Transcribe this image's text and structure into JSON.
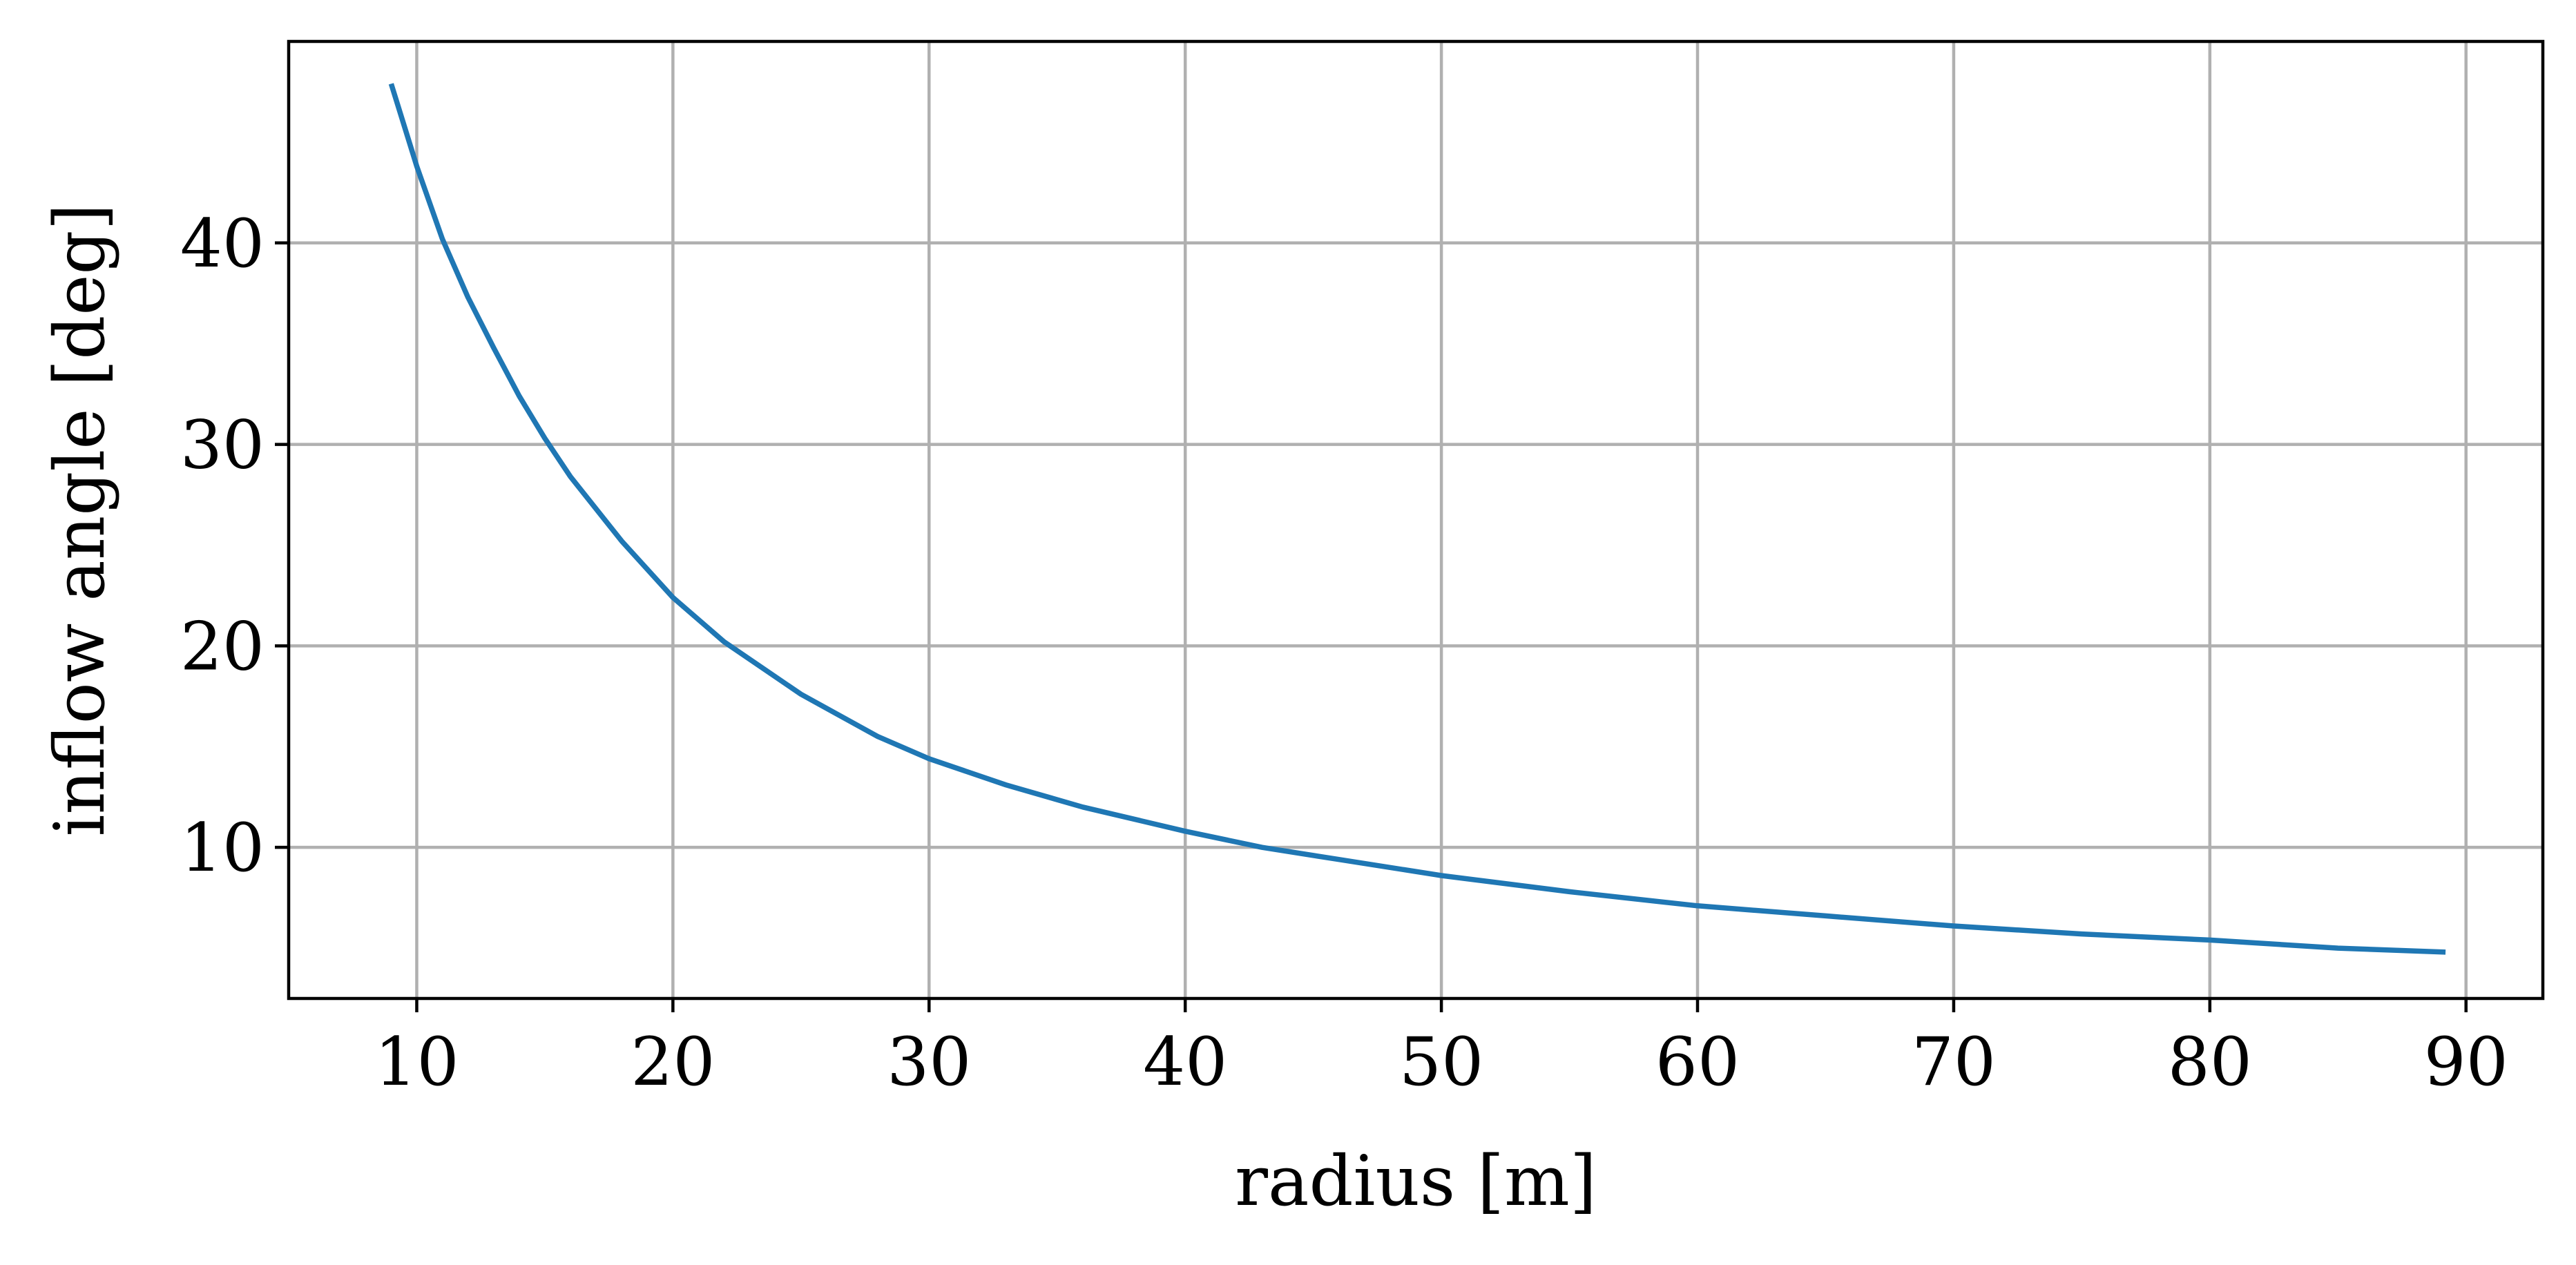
{
  "chart_data": {
    "type": "line",
    "title": "",
    "xlabel": "radius [m]",
    "ylabel": "inflow angle [deg]",
    "xlim": [
      5,
      93
    ],
    "ylim": [
      2.5,
      50
    ],
    "x_ticks": [
      10,
      20,
      30,
      40,
      50,
      60,
      70,
      80,
      90
    ],
    "y_ticks": [
      10,
      20,
      30,
      40
    ],
    "grid": true,
    "legend": "none",
    "series": [
      {
        "color": "#1f77b4",
        "x": [
          9,
          10,
          11,
          12,
          13,
          14,
          15,
          16,
          18,
          20,
          22,
          25,
          28,
          30,
          33,
          36,
          40,
          43,
          46,
          50,
          55,
          60,
          65,
          70,
          75,
          80,
          85,
          89.2
        ],
        "y": [
          47.9,
          43.8,
          40.2,
          37.3,
          34.8,
          32.4,
          30.3,
          28.4,
          25.2,
          22.4,
          20.2,
          17.6,
          15.5,
          14.4,
          13.1,
          12.0,
          10.8,
          10.0,
          9.4,
          8.6,
          7.8,
          7.1,
          6.6,
          6.1,
          5.7,
          5.4,
          5.0,
          4.8
        ]
      }
    ]
  }
}
